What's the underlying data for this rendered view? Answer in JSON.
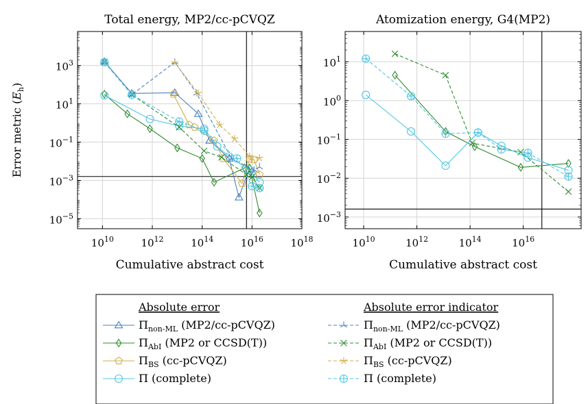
{
  "colors": {
    "nonml": "#4a7fc0",
    "abi": "#2e8b2e",
    "bs": "#cfae4a",
    "complete": "#4fc6e6"
  },
  "y_axis_label": "Error metric (E_h)",
  "chart_data": [
    {
      "type": "line",
      "title": "Total energy, MP2/cc-pCVQZ",
      "xlabel": "Cumulative abstract cost",
      "xscale": "log",
      "yscale": "log",
      "xlim": [
        1000000000.0,
        1e+18
      ],
      "ylim": [
        3e-06,
        60000.0
      ],
      "xticks": [
        {
          "v": 10000000000.0,
          "b": "10",
          "e": "10"
        },
        {
          "v": 1000000000000.0,
          "b": "10",
          "e": "12"
        },
        {
          "v": 100000000000000.0,
          "b": "10",
          "e": "14"
        },
        {
          "v": 1e+16,
          "b": "10",
          "e": "16"
        },
        {
          "v": 1e+18,
          "b": "10",
          "e": "18"
        }
      ],
      "yticks": [
        {
          "v": 1e-05,
          "b": "10",
          "e": "−5"
        },
        {
          "v": 0.001,
          "b": "10",
          "e": "−3"
        },
        {
          "v": 0.1,
          "b": "10",
          "e": "−1"
        },
        {
          "v": 10.0,
          "b": "10",
          "e": "1"
        },
        {
          "v": 1000.0,
          "b": "10",
          "e": "3"
        }
      ],
      "grid": true,
      "ref_lines": {
        "x": 6000000000000000.0,
        "y": 0.0016
      },
      "series": [
        {
          "id": "nonml_err",
          "color_key": "nonml",
          "style": "solid",
          "marker": "triangle",
          "points": [
            [
              12000000000.0,
              1600
            ],
            [
              150000000000.0,
              35
            ],
            [
              8000000000000.0,
              38
            ],
            [
              70000000000000.0,
              3
            ],
            [
              200000000000000.0,
              0.12
            ],
            [
              1200000000000000.0,
              0.014
            ],
            [
              3000000000000000.0,
              0.00013
            ],
            [
              7000000000000000.0,
              0.003
            ],
            [
              1.2e+16,
              0.002
            ]
          ]
        },
        {
          "id": "abi_err",
          "color_key": "abi",
          "style": "solid",
          "marker": "diamond",
          "points": [
            [
              12000000000.0,
              32
            ],
            [
              100000000000.0,
              3
            ],
            [
              800000000000.0,
              0.5
            ],
            [
              10000000000000.0,
              0.05
            ],
            [
              100000000000000.0,
              0.014
            ],
            [
              300000000000000.0,
              0.0008
            ],
            [
              5000000000000000.0,
              0.0045
            ],
            [
              8000000000000000.0,
              0.0045
            ],
            [
              2e+16,
              2e-05
            ]
          ]
        },
        {
          "id": "bs_err",
          "color_key": "bs",
          "style": "solid",
          "marker": "pentagon",
          "points": [
            [
              7000000000000.0,
              32
            ],
            [
              30000000000000.0,
              0.8
            ],
            [
              50000000000000.0,
              0.6
            ],
            [
              300000000000000.0,
              0.12
            ],
            [
              700000000000000.0,
              0.014
            ],
            [
              4000000000000000.0,
              0.0007
            ],
            [
              8000000000000000.0,
              0.013
            ],
            [
              1.2e+16,
              0.012
            ],
            [
              2e+16,
              0.002
            ]
          ]
        },
        {
          "id": "complete_err",
          "color_key": "complete",
          "style": "solid",
          "marker": "circle",
          "points": [
            [
              12000000000.0,
              28
            ],
            [
              800000000000.0,
              1.6
            ],
            [
              12000000000000.0,
              0.7
            ],
            [
              120000000000000.0,
              0.5
            ],
            [
              400000000000000.0,
              0.06
            ],
            [
              1200000000000000.0,
              0.018
            ],
            [
              8000000000000000.0,
              0.0035
            ],
            [
              2e+16,
              0.0008
            ]
          ]
        },
        {
          "id": "nonml_ind",
          "color_key": "nonml",
          "style": "dashed",
          "marker": "tristar",
          "points": [
            [
              12000000000.0,
              1500
            ],
            [
              150000000000.0,
              30
            ],
            [
              8000000000000.0,
              1500
            ],
            [
              60000000000000.0,
              35
            ],
            [
              1500000000000000.0,
              0.014
            ],
            [
              1.2e+16,
              0.0035
            ],
            [
              2e+16,
              0.005
            ]
          ]
        },
        {
          "id": "abi_ind",
          "color_key": "abi",
          "style": "dashed",
          "marker": "cross",
          "points": [
            [
              12000000000.0,
              1500
            ],
            [
              150000000000.0,
              30
            ],
            [
              12000000000000.0,
              0.6
            ],
            [
              120000000000000.0,
              0.035
            ],
            [
              600000000000000.0,
              0.016
            ],
            [
              6000000000000000.0,
              0.002
            ],
            [
              1e+16,
              0.0015
            ],
            [
              2e+16,
              0.0004
            ]
          ]
        },
        {
          "id": "bs_ind",
          "color_key": "bs",
          "style": "dashed",
          "marker": "star",
          "points": [
            [
              8000000000000.0,
              1400
            ],
            [
              70000000000000.0,
              36
            ],
            [
              500000000000000.0,
              0.8
            ],
            [
              2000000000000000.0,
              0.15
            ],
            [
              8000000000000000.0,
              0.018
            ],
            [
              2e+16,
              0.015
            ]
          ]
        },
        {
          "id": "complete_ind",
          "color_key": "complete",
          "style": "dashed",
          "marker": "oplus",
          "points": [
            [
              12000000000.0,
              1500
            ],
            [
              150000000000.0,
              30
            ],
            [
              12000000000000.0,
              1.2
            ],
            [
              120000000000000.0,
              0.4
            ],
            [
              2500000000000000.0,
              0.014
            ],
            [
              1e+16,
              0.0005
            ],
            [
              2e+16,
              0.0004
            ]
          ]
        }
      ]
    },
    {
      "type": "line",
      "title": "Atomization energy, G4(MP2)",
      "xlabel": "Cumulative abstract cost",
      "xscale": "log",
      "yscale": "log",
      "xlim": [
        2000000000.0,
        1.5e+18
      ],
      "ylim": [
        0.0005,
        60
      ],
      "xticks": [
        {
          "v": 10000000000.0,
          "b": "10",
          "e": "10"
        },
        {
          "v": 1000000000000.0,
          "b": "10",
          "e": "12"
        },
        {
          "v": 100000000000000.0,
          "b": "10",
          "e": "14"
        },
        {
          "v": 1e+16,
          "b": "10",
          "e": "16"
        }
      ],
      "yticks": [
        {
          "v": 0.001,
          "b": "10",
          "e": "−3"
        },
        {
          "v": 0.01,
          "b": "10",
          "e": "−2"
        },
        {
          "v": 0.1,
          "b": "10",
          "e": "−1"
        },
        {
          "v": 1.0,
          "b": "10",
          "e": "0"
        },
        {
          "v": 10.0,
          "b": "10",
          "e": "1"
        }
      ],
      "grid": true,
      "ref_lines": {
        "x": 5e+16,
        "y": 0.0016
      },
      "series": [
        {
          "id": "abi_err",
          "color_key": "abi",
          "style": "solid",
          "marker": "diamond",
          "points": [
            [
              150000000000.0,
              4.5
            ],
            [
              12000000000000.0,
              0.16
            ],
            [
              150000000000000.0,
              0.065
            ],
            [
              8000000000000000.0,
              0.019
            ],
            [
              5e+17,
              0.024
            ]
          ]
        },
        {
          "id": "complete_err",
          "color_key": "complete",
          "style": "solid",
          "marker": "circle",
          "points": [
            [
              12000000000.0,
              1.4
            ],
            [
              600000000000.0,
              0.16
            ],
            [
              12000000000000.0,
              0.021
            ],
            [
              200000000000000.0,
              0.15
            ],
            [
              1500000000000000.0,
              0.068
            ],
            [
              1.5e+16,
              0.034
            ],
            [
              5e+17,
              0.016
            ]
          ]
        },
        {
          "id": "abi_ind",
          "color_key": "abi",
          "style": "dashed",
          "marker": "cross",
          "points": [
            [
              150000000000.0,
              16
            ],
            [
              12000000000000.0,
              4.5
            ],
            [
              120000000000000.0,
              0.08
            ],
            [
              8000000000000000.0,
              0.047
            ],
            [
              5e+17,
              0.0045
            ]
          ]
        },
        {
          "id": "complete_ind",
          "color_key": "complete",
          "style": "dashed",
          "marker": "oplus",
          "points": [
            [
              12000000000.0,
              12
            ],
            [
              600000000000.0,
              1.3
            ],
            [
              12000000000000.0,
              0.14
            ],
            [
              200000000000000.0,
              0.15
            ],
            [
              1500000000000000.0,
              0.055
            ],
            [
              1.5e+16,
              0.045
            ],
            [
              5e+17,
              0.011
            ]
          ]
        }
      ]
    }
  ],
  "legend": {
    "headers": [
      "Absolute error",
      "Absolute error indicator"
    ],
    "entries": [
      {
        "series": "nonml_err",
        "pi_sub": "non-ML",
        "text": "(MP2/cc-pCVQZ)"
      },
      {
        "series": "nonml_ind",
        "pi_sub": "non-ML",
        "text": "(MP2/cc-pCVQZ)"
      },
      {
        "series": "abi_err",
        "pi_sub": "AbI",
        "text": "(MP2 or CCSD(T))"
      },
      {
        "series": "abi_ind",
        "pi_sub": "AbI",
        "text": "(MP2 or CCSD(T))"
      },
      {
        "series": "bs_err",
        "pi_sub": "BS",
        "text": "(cc-pCVQZ)"
      },
      {
        "series": "bs_ind",
        "pi_sub": "BS",
        "text": "(cc-pCVQZ)"
      },
      {
        "series": "complete_err",
        "pi_sub": "",
        "text": "(complete)"
      },
      {
        "series": "complete_ind",
        "pi_sub": "",
        "text": "(complete)"
      }
    ]
  }
}
